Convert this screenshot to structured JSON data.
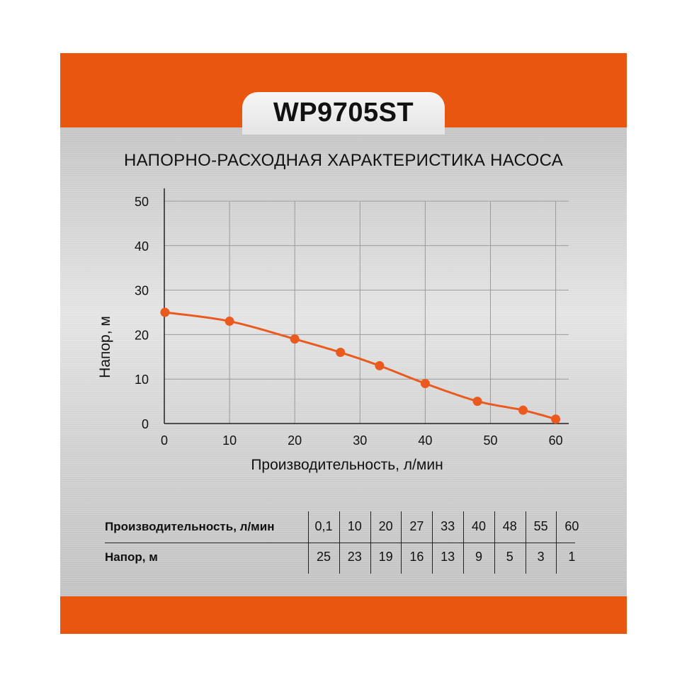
{
  "header": {
    "model": "WP9705ST",
    "chart_title": "НАПОРНО-РАСХОДНАЯ ХАРАКТЕРИСТИКА НАСОСА"
  },
  "colors": {
    "accent": "#e8560f",
    "curve": "#ea5a1e",
    "grid": "#9a9a9a",
    "axis": "#222222"
  },
  "chart_data": {
    "type": "line",
    "title": "НАПОРНО-РАСХОДНАЯ ХАРАКТЕРИСТИКА НАСОСА",
    "xlabel": "Производительность, л/мин",
    "ylabel": "Напор, м",
    "xlim": [
      0,
      62
    ],
    "ylim": [
      0,
      50
    ],
    "xticks": [
      0,
      10,
      20,
      30,
      40,
      50,
      60
    ],
    "yticks": [
      0,
      10,
      20,
      30,
      40,
      50
    ],
    "grid": true,
    "series": [
      {
        "x": [
          0.1,
          10,
          20,
          27,
          33,
          40,
          48,
          55,
          60
        ],
        "y": [
          25,
          23,
          19,
          16,
          13,
          9,
          5,
          3,
          1
        ]
      }
    ]
  },
  "table": {
    "row1_label": "Производительность, л/мин",
    "row2_label": "Напор, м",
    "flow": [
      "0,1",
      "10",
      "20",
      "27",
      "33",
      "40",
      "48",
      "55",
      "60"
    ],
    "head": [
      "25",
      "23",
      "19",
      "16",
      "13",
      "9",
      "5",
      "3",
      "1"
    ]
  }
}
